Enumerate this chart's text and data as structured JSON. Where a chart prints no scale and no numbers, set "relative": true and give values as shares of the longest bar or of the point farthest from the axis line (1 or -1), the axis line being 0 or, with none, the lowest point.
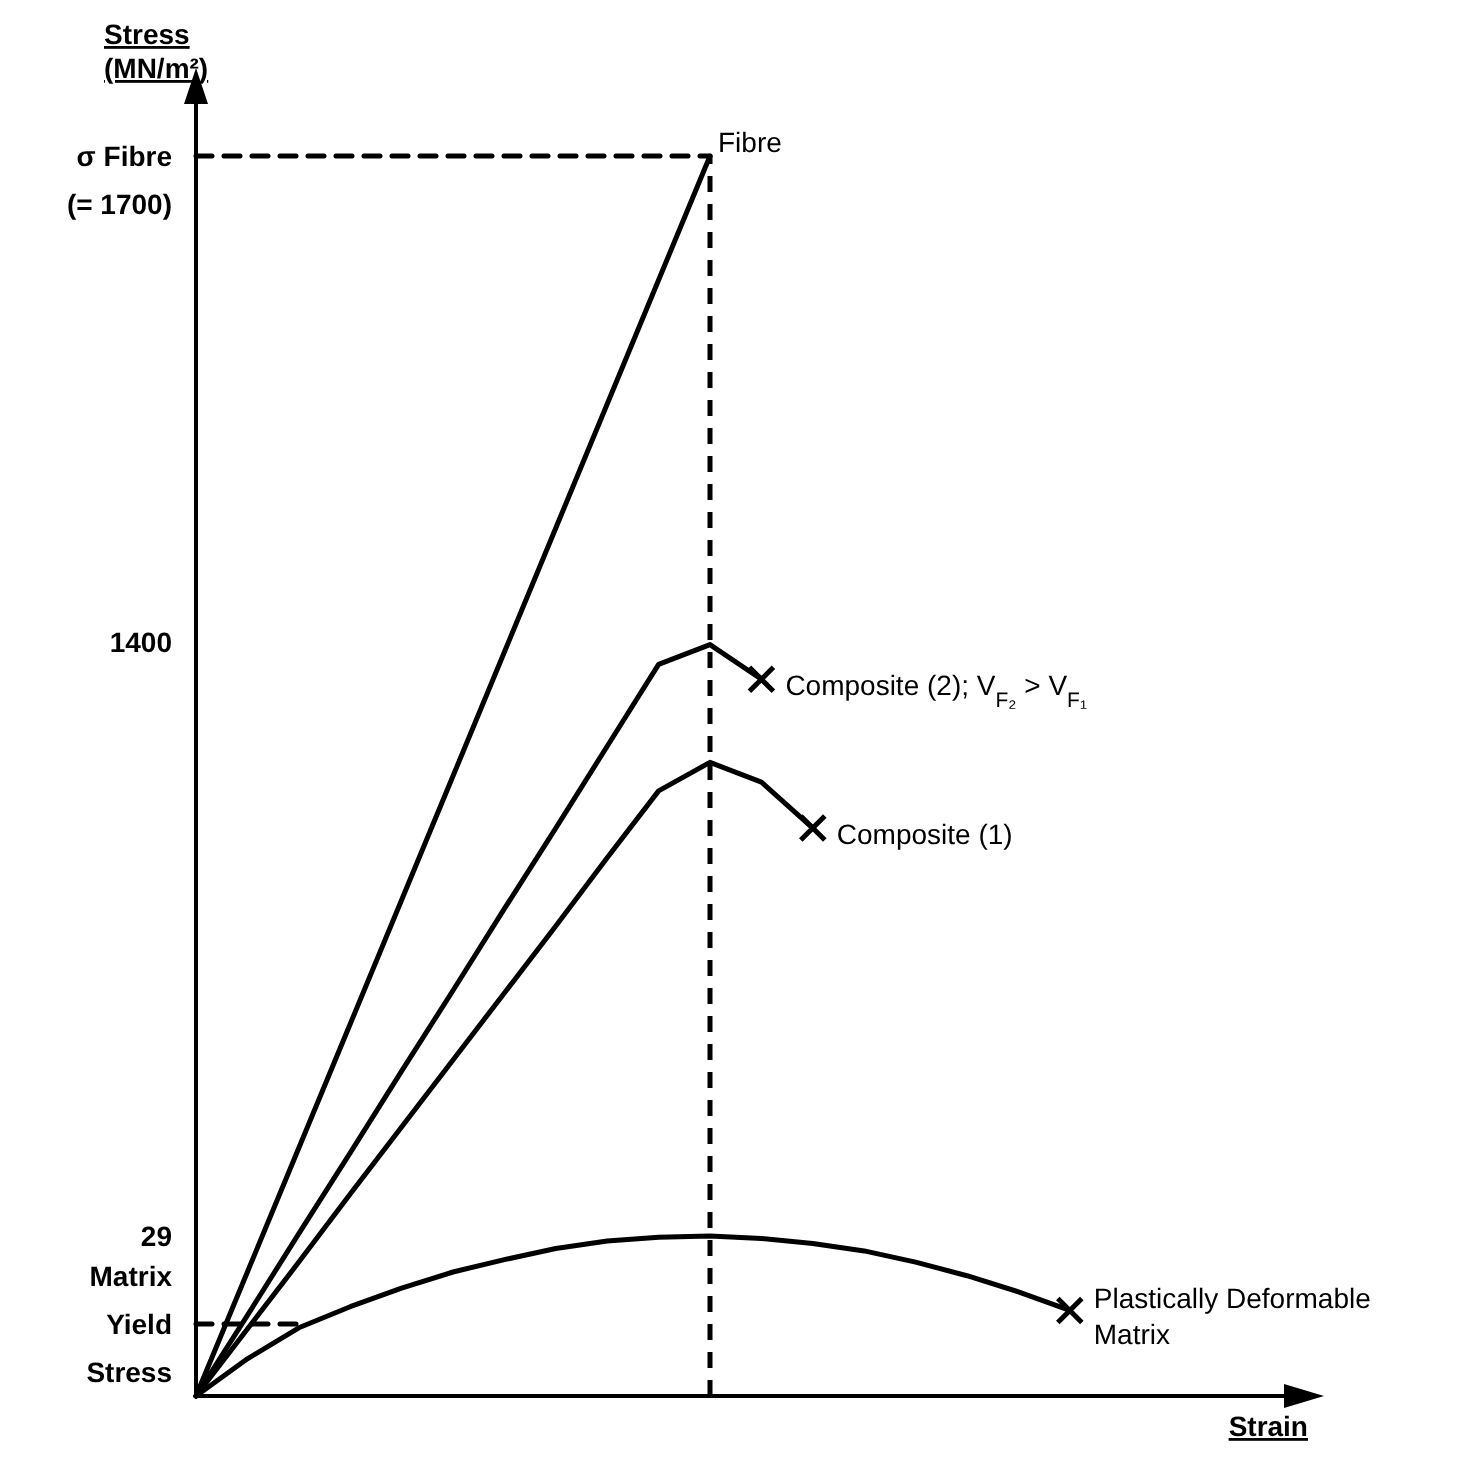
{
  "chart_data": {
    "type": "line",
    "relative": true,
    "xlabel": "Strain",
    "ylabel": "Stress\n(MN/m²)",
    "marker": "none",
    "categories": [
      null,
      null,
      null,
      null,
      null,
      null,
      null,
      null,
      null,
      null,
      null,
      null,
      null,
      null,
      null,
      null,
      null,
      null
    ],
    "annotations": [
      "Matrix\nYield\nStress",
      "29",
      "1400",
      "σ Fibre\n(= 1700)"
    ],
    "series": [
      {
        "name": "Fibre",
        "color": "#000000",
        "values": [
          0,
          0.1,
          0.2,
          0.3,
          0.4,
          0.5,
          0.6,
          0.7,
          0.8,
          0.9,
          1,
          null,
          null,
          null,
          null,
          null,
          null,
          null
        ]
      },
      {
        "name": "Composite (2); V$_{F₂}$ > V$_{F₁}$",
        "color": "#000000",
        "values": [
          0,
          0.065,
          0.131,
          0.196,
          0.262,
          0.327,
          0.393,
          0.458,
          0.524,
          0.59,
          0.606,
          0.578,
          null,
          null,
          null,
          null,
          null,
          null
        ]
      },
      {
        "name": "Composite (1)",
        "color": "#000000",
        "values": [
          0,
          0.054,
          0.108,
          0.163,
          0.217,
          0.271,
          0.325,
          0.379,
          0.434,
          0.488,
          0.511,
          0.495,
          0.458,
          null,
          null,
          null,
          null,
          null
        ]
      },
      {
        "name": "Plastically Deformable Matrix",
        "color": "#000000",
        "values": [
          0,
          0.03,
          0.055,
          0.072,
          0.087,
          0.1,
          0.11,
          0.119,
          0.125,
          0.128,
          0.129,
          0.127,
          0.123,
          0.117,
          0.108,
          0.097,
          0.084,
          0.069
        ]
      },
      {
        "color": "#000000",
        "line_style": "dashed",
        "values": [
          1,
          1,
          1,
          1,
          1,
          1,
          1,
          1,
          1,
          1,
          1,
          null,
          null,
          null,
          null,
          null,
          null,
          null
        ]
      },
      {
        "color": "#000000",
        "line_style": "dashed",
        "values": [
          0.058,
          0.058,
          0.058,
          null,
          null,
          null,
          null,
          null,
          null,
          null,
          null,
          null,
          null,
          null,
          null,
          null,
          null,
          null
        ]
      }
    ]
  }
}
